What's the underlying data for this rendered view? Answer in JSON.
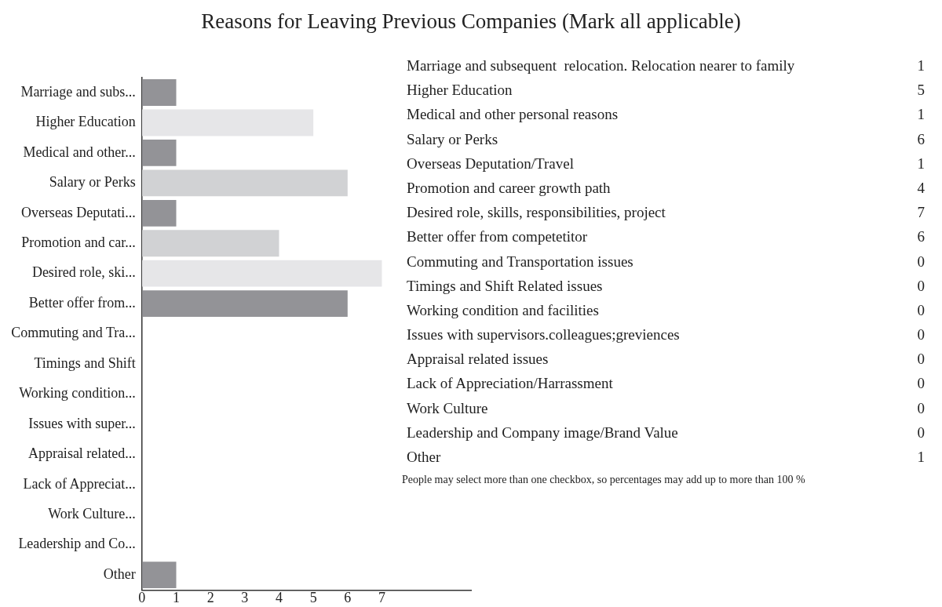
{
  "chart_data": [
    {
      "type": "bar",
      "orientation": "horizontal",
      "title": "Reasons for Leaving Previous Companies (Mark all applicable)",
      "categories": [
        "Marriage and subs...",
        "Higher Education",
        "Medical and other...",
        "Salary or Perks",
        "Overseas Deputati...",
        "Promotion and car...",
        "Desired role, ski...",
        "Better offer from...",
        "Commuting and Tra...",
        "Timings and Shift",
        "Working condition...",
        "Issues with super...",
        "Appraisal related...",
        "Lack of Appreciat...",
        "Work Culture...",
        "Leadership and Co...",
        "Other"
      ],
      "values": [
        1,
        5,
        1,
        6,
        1,
        4,
        7,
        6,
        0,
        0,
        0,
        0,
        0,
        0,
        0,
        0,
        1
      ],
      "colors": [
        "#939397",
        "#e6e6e8",
        "#939397",
        "#d1d2d4",
        "#939397",
        "#d1d2d4",
        "#e6e6e8",
        "#939397",
        "#939397",
        "#939397",
        "#939397",
        "#939397",
        "#939397",
        "#939397",
        "#939397",
        "#939397",
        "#939397"
      ],
      "xlim": [
        0,
        9.6
      ],
      "xticks": [
        0,
        1,
        2,
        3,
        4,
        5,
        6,
        7
      ],
      "grid": false,
      "legend": false
    },
    {
      "type": "other",
      "data_labels": true,
      "categories": [
        "Marriage and subsequent  relocation. Relocation nearer to family",
        "Higher Education",
        "Medical and other personal reasons",
        "Salary or Perks",
        "Overseas Deputation/Travel",
        "Promotion and career growth path",
        "Desired role, skills, responsibilities, project",
        "Better offer from competetitor",
        "Commuting and Transportation issues",
        "Timings and Shift Related issues",
        "Working condition and facilities",
        "Issues with supervisors.colleagues;greviences",
        "Appraisal related issues",
        "Lack of Appreciation/Harrassment",
        "Work Culture",
        "Leadership and Company image/Brand Value",
        "Other"
      ],
      "values": [
        1,
        5,
        1,
        6,
        1,
        4,
        7,
        6,
        0,
        0,
        0,
        0,
        0,
        0,
        0,
        0,
        1
      ],
      "annotations": [
        "People may select more than one checkbox, so percentages may add up to more than 100 %"
      ]
    }
  ]
}
